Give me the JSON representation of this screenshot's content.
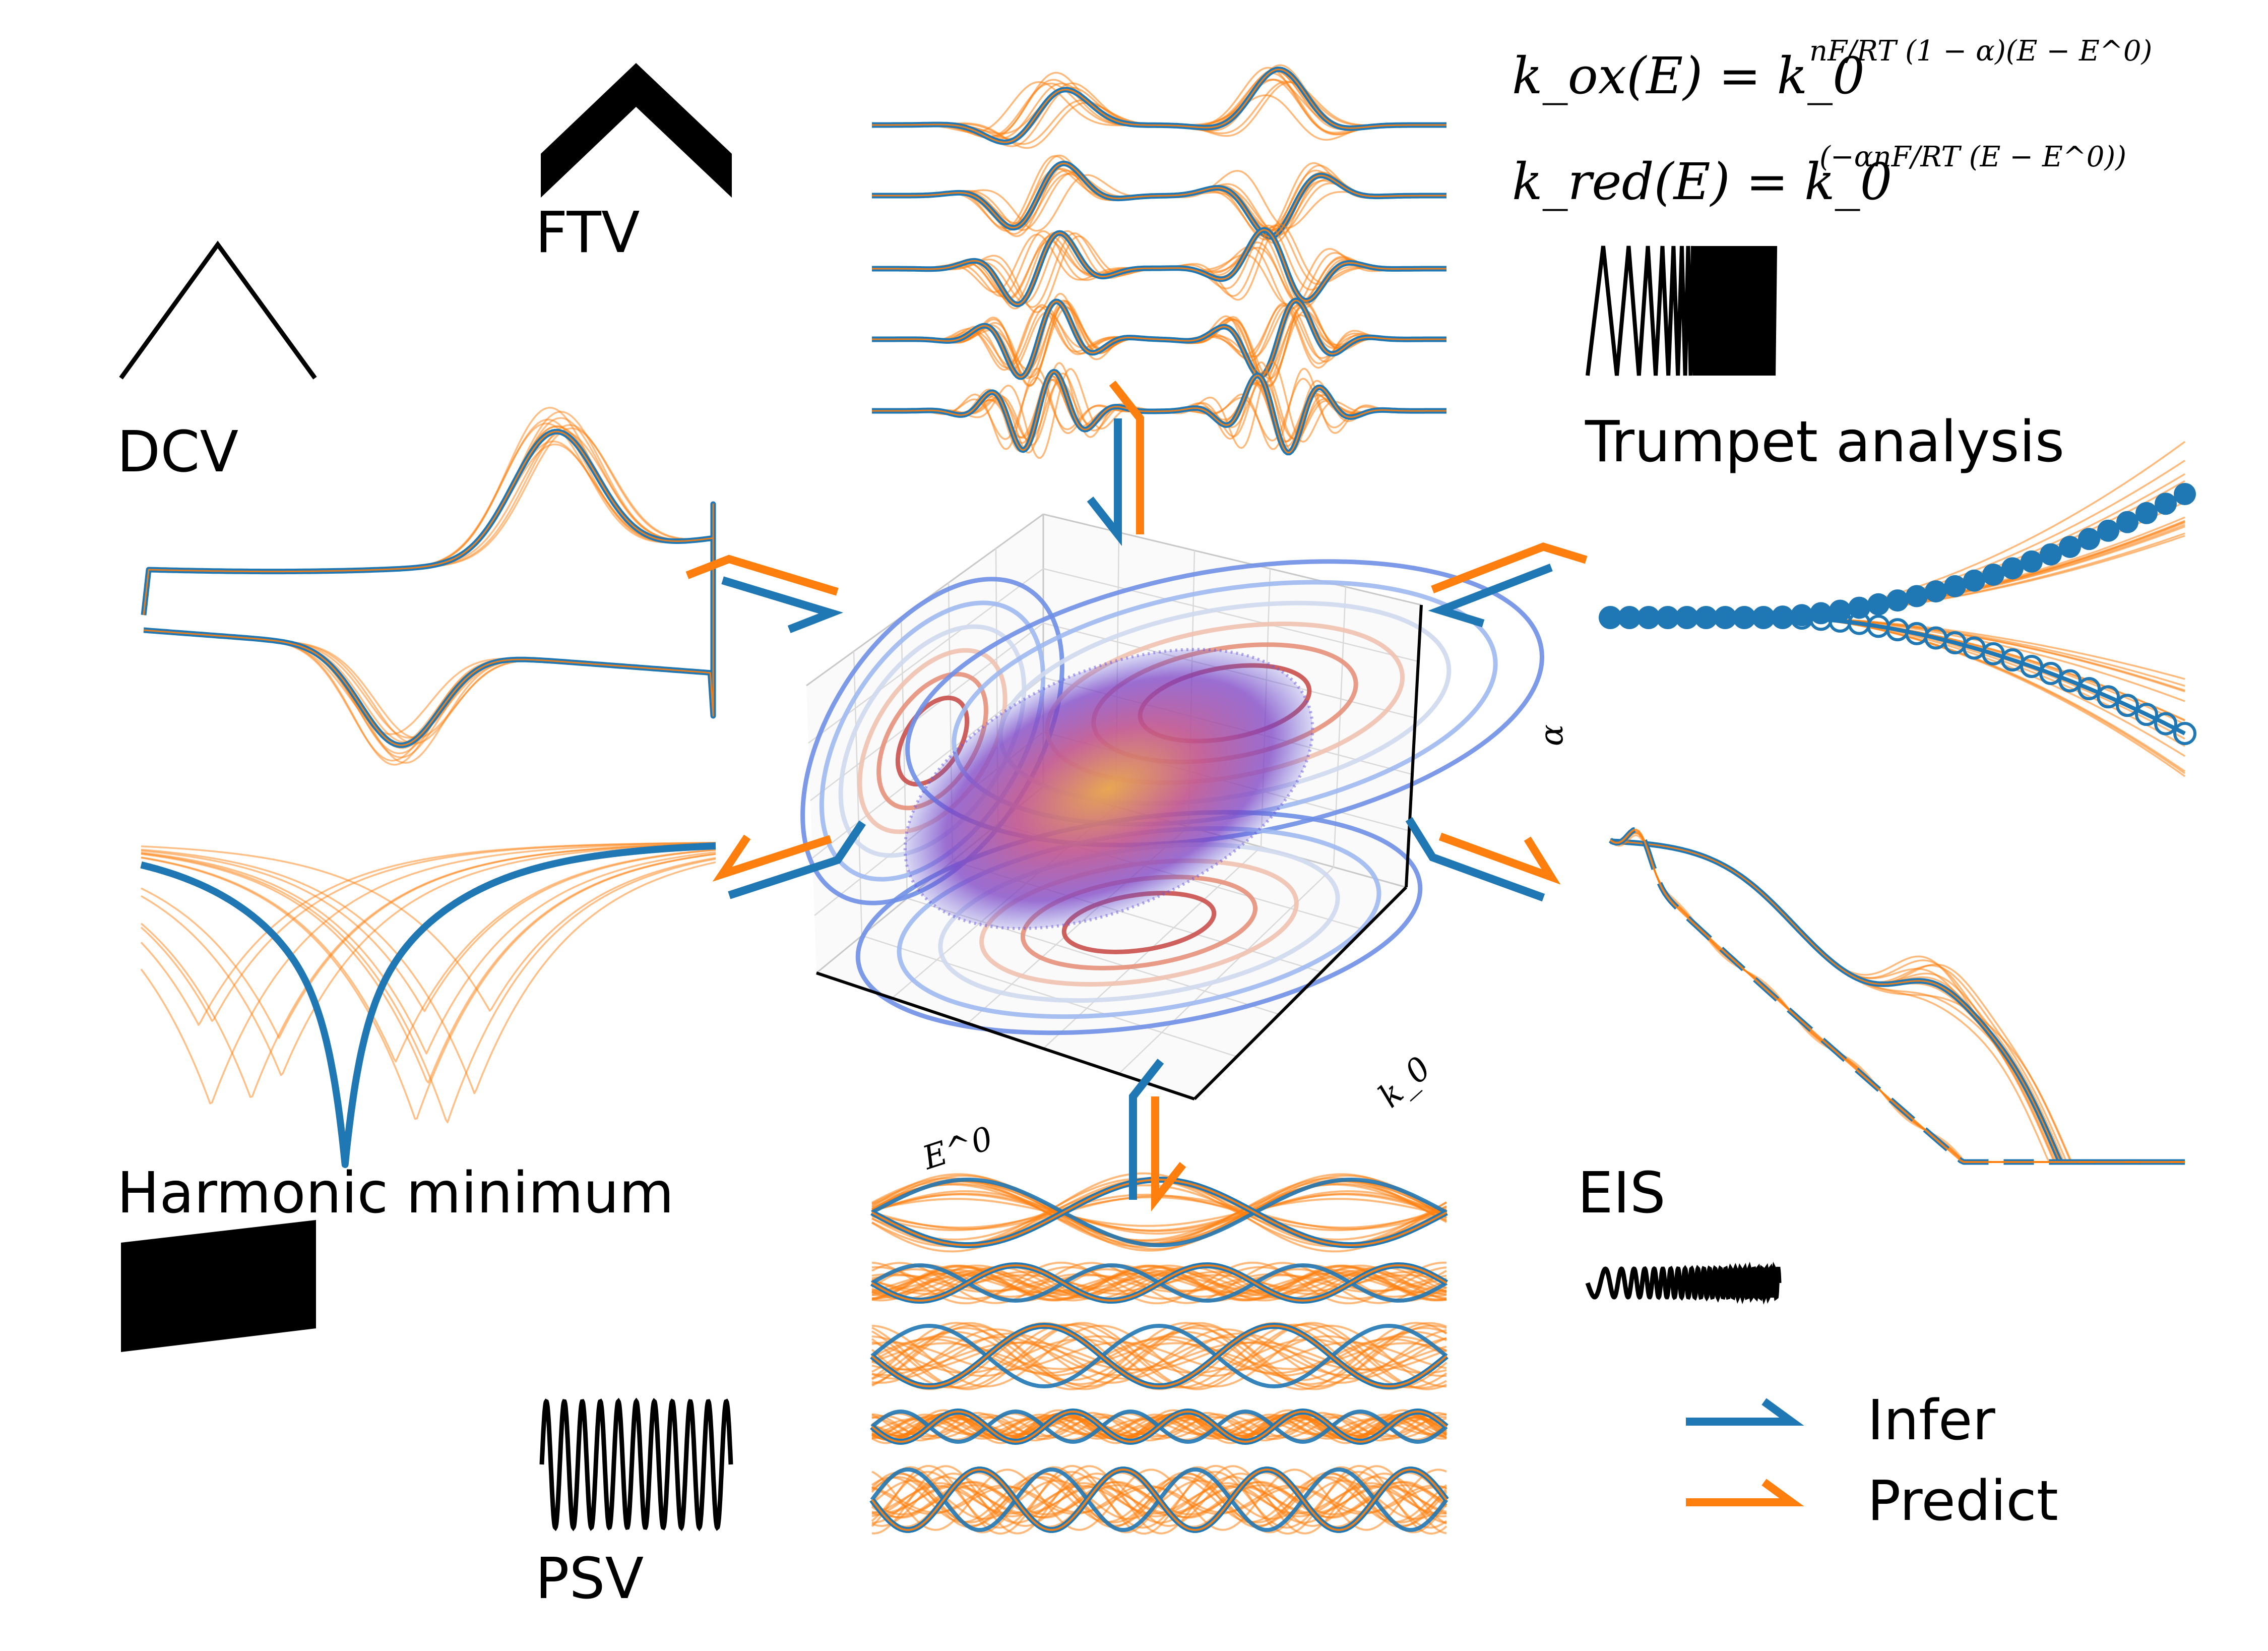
{
  "labels": {
    "dcv": "DCV",
    "ftv": "FTV",
    "trumpet": "Trumpet analysis",
    "harmonic": "Harmonic minimum",
    "eis": "EIS",
    "psv": "PSV"
  },
  "equations": {
    "kox": {
      "lhs": "k_ox(E) = k_0",
      "exponent": "nF/RT (1 − α)(E − E^0)"
    },
    "kred": {
      "lhs": "k_red(E) = k_0",
      "exponent": "(−αnF/RT (E − E^0))"
    }
  },
  "axes3d": {
    "x_label": "E^0",
    "y_label": "k_0",
    "z_label": "α"
  },
  "legend": [
    {
      "name": "Infer",
      "color": "#1f77b4"
    },
    {
      "name": "Predict",
      "color": "#ff7f0e"
    }
  ],
  "colors": {
    "infer": "#1f77b4",
    "predict": "#ff7f0e",
    "waveform": "#000000"
  }
}
